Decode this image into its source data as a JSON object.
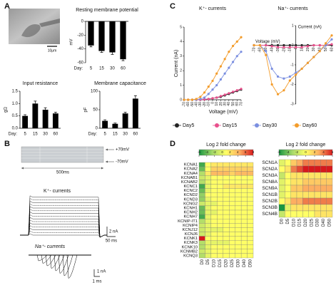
{
  "figure": {
    "panel_labels": [
      "A",
      "B",
      "C",
      "D"
    ],
    "scale_bar": "10μm",
    "protocol": {
      "high": "+70mV",
      "low": "-70mV",
      "duration": "500ms"
    },
    "traces": {
      "k_label": "K⁺- currents",
      "na_label": "Na⁺- currents",
      "k_scale_y": "2 nA",
      "k_scale_x": "50 ms",
      "na_scale_y": "1 nA",
      "na_scale_x": "1 ms"
    }
  },
  "chart_data": [
    {
      "type": "bar",
      "title": "Resting membrane potential",
      "ylabel": "mV",
      "xlabel": "Day:",
      "categories": [
        "5",
        "15",
        "30",
        "60"
      ],
      "values": [
        -35,
        -43,
        -45,
        -55
      ],
      "errors": [
        2,
        2,
        3,
        2
      ],
      "color": "#000000",
      "ylim": [
        -60,
        0
      ],
      "yticks": [
        -60,
        -40,
        -20,
        0
      ]
    },
    {
      "type": "bar",
      "title": "Input resistance",
      "ylabel": "gΩ",
      "xlabel": "Day:",
      "categories": [
        "5",
        "15",
        "30",
        "60"
      ],
      "values": [
        0.5,
        1.0,
        0.75,
        0.6
      ],
      "errors": [
        0.05,
        0.1,
        0.08,
        0.05
      ],
      "color": "#000000",
      "ylim": [
        0,
        1.5
      ],
      "yticks": [
        {
          "value": 0,
          "label": "0.0"
        },
        0.5,
        {
          "value": 1,
          "label": "1.0"
        },
        1.5
      ]
    },
    {
      "type": "bar",
      "title": "Membrane capacitance",
      "ylabel": "pF",
      "xlabel": "Day:",
      "categories": [
        "5",
        "15",
        "30",
        "60"
      ],
      "values": [
        20,
        12,
        40,
        80
      ],
      "errors": [
        3,
        2,
        3,
        8
      ],
      "color": "#000000",
      "ylim": [
        0,
        100
      ],
      "yticks": [
        0,
        50,
        100
      ]
    },
    {
      "type": "line",
      "title": "K⁺- currents",
      "xlabel": "Voltage (mV)",
      "ylabel": "Current (nA)",
      "legend": true,
      "x": [
        -70,
        -60,
        -50,
        -40,
        -30,
        -20,
        -10,
        0,
        10,
        20,
        30,
        40,
        50,
        60,
        70
      ],
      "xlim": [
        -70,
        70
      ],
      "xticks": [
        -70,
        -60,
        -50,
        -40,
        -30,
        -20,
        -10,
        0,
        10,
        20,
        30,
        40,
        50,
        60,
        70
      ],
      "ylim": [
        0,
        5
      ],
      "yticks": [
        0,
        1,
        2,
        3,
        4,
        5
      ],
      "series": [
        {
          "name": "Day5",
          "color": "#222222",
          "values": [
            0,
            0,
            0,
            0,
            0,
            0.02,
            0.05,
            0.1,
            0.15,
            0.2,
            0.3,
            0.4,
            0.5,
            0.6,
            0.7
          ]
        },
        {
          "name": "Day15",
          "color": "#e8508c",
          "values": [
            0,
            0,
            0,
            0,
            0,
            0.02,
            0.05,
            0.1,
            0.15,
            0.25,
            0.35,
            0.45,
            0.55,
            0.65,
            0.75
          ]
        },
        {
          "name": "Day30",
          "color": "#7b8fe0",
          "values": [
            0,
            0,
            0,
            0,
            0.05,
            0.15,
            0.4,
            0.7,
            1.0,
            1.4,
            1.8,
            2.2,
            2.6,
            3.0,
            3.3
          ]
        },
        {
          "name": "Day60",
          "color": "#f39c2b",
          "values": [
            0,
            0,
            0,
            0.05,
            0.2,
            0.5,
            0.9,
            1.3,
            1.8,
            2.3,
            2.8,
            3.3,
            3.7,
            4.0,
            4.3
          ]
        }
      ]
    },
    {
      "type": "line",
      "title": "Na⁺- currents",
      "xlabel": "Voltage (mV)",
      "ylabel": "Current (nA)",
      "axes_cross_at_zero": true,
      "x": [
        -70,
        -60,
        -50,
        -40,
        -30,
        -20,
        -10,
        0,
        10,
        20,
        30,
        40,
        50,
        60
      ],
      "xlim": [
        -70,
        60
      ],
      "xticks": [
        -70,
        -60,
        -50,
        -40,
        -30,
        -20,
        -10,
        0,
        10,
        20,
        30,
        40,
        50,
        60
      ],
      "ylim": [
        -3,
        1
      ],
      "yticks": [
        -3,
        -2,
        -1,
        0,
        1
      ],
      "series": [
        {
          "color": "#222222",
          "values": [
            0,
            0,
            0,
            0,
            0,
            0,
            0,
            0,
            0,
            0,
            0,
            0,
            0,
            0
          ]
        },
        {
          "color": "#e8508c",
          "values": [
            0,
            0,
            0,
            -0.05,
            -0.1,
            -0.1,
            -0.1,
            -0.1,
            -0.1,
            -0.05,
            0,
            0,
            0,
            0.05
          ]
        },
        {
          "color": "#7b8fe0",
          "values": [
            0,
            0,
            -0.3,
            -1.2,
            -1.6,
            -1.7,
            -1.6,
            -1.4,
            -1.2,
            -0.9,
            -0.6,
            -0.3,
            0,
            0.3
          ]
        },
        {
          "color": "#f39c2b",
          "values": [
            0,
            0,
            -0.5,
            -2.0,
            -2.5,
            -2.3,
            -1.8,
            -1.5,
            -1.2,
            -0.9,
            -0.6,
            -0.3,
            0.1,
            0.5
          ]
        }
      ]
    },
    {
      "type": "heatmap",
      "title": "Log 2 fold change",
      "colormap": [
        "#1a9641",
        "#a6d96a",
        "#ffff66",
        "#fdae61",
        "#d7191c"
      ],
      "zlim": [
        -6,
        8
      ],
      "zticks": [
        -6,
        -4,
        -2,
        0,
        2,
        4,
        6,
        8
      ],
      "columns": [
        "D0",
        "D5",
        "D10",
        "D15",
        "D20",
        "D25",
        "D30",
        "D40",
        "D50"
      ],
      "rows": [
        "KCNA1",
        "KCNA2",
        "KCNA4",
        "KCNAB1",
        "KCNAB2",
        "KCNC1",
        "KCNC2",
        "KCND2",
        "KCND3",
        "KCNG2",
        "KCNH1",
        "KCNH2",
        "KCNH7",
        "KCNIP-IT1",
        "KCNIP4",
        "KCNJ12",
        "KCNJ6",
        "KCNK1",
        "KCNK3",
        "KCNK10",
        "KCNMB2",
        "KCNQ3"
      ],
      "values": [
        [
          -5,
          1,
          2,
          2,
          2,
          2,
          2,
          2,
          2
        ],
        [
          -4,
          1,
          3,
          3,
          3,
          3,
          3,
          3,
          3
        ],
        [
          -2,
          2,
          4,
          4,
          4,
          3,
          4,
          4,
          4
        ],
        [
          -1,
          0,
          1,
          1,
          1,
          1,
          1,
          1,
          1
        ],
        [
          -2,
          0,
          1,
          1,
          1,
          1,
          1,
          1,
          1
        ],
        [
          -5,
          0,
          1,
          1,
          2,
          2,
          2,
          2,
          2
        ],
        [
          -4,
          0,
          1,
          1,
          1,
          1,
          1,
          1,
          1
        ],
        [
          -3,
          1,
          1,
          1,
          1,
          1,
          1,
          1,
          1
        ],
        [
          -3,
          0,
          1,
          1,
          1,
          1,
          1,
          1,
          1
        ],
        [
          -1,
          0,
          0,
          1,
          1,
          1,
          1,
          1,
          1
        ],
        [
          -4,
          0,
          1,
          1,
          1,
          1,
          1,
          1,
          1
        ],
        [
          -4,
          0,
          0,
          1,
          1,
          1,
          1,
          1,
          1
        ],
        [
          -5,
          0,
          1,
          1,
          1,
          1,
          1,
          1,
          1
        ],
        [
          -2,
          0,
          1,
          1,
          1,
          1,
          1,
          1,
          1
        ],
        [
          -1,
          0,
          1,
          1,
          1,
          1,
          1,
          1,
          1
        ],
        [
          -1,
          0,
          0,
          0,
          1,
          1,
          1,
          1,
          1
        ],
        [
          -1,
          0,
          1,
          1,
          1,
          1,
          1,
          1,
          1
        ],
        [
          8,
          1,
          1,
          1,
          1,
          1,
          1,
          1,
          1
        ],
        [
          -2,
          0,
          0,
          0,
          0,
          1,
          1,
          1,
          1
        ],
        [
          -2,
          0,
          1,
          1,
          1,
          1,
          1,
          1,
          1
        ],
        [
          -1,
          0,
          1,
          1,
          1,
          1,
          1,
          1,
          1
        ],
        [
          -2,
          0,
          1,
          1,
          1,
          1,
          1,
          1,
          1
        ]
      ]
    },
    {
      "type": "heatmap",
      "title": "Log 2 fold change",
      "colormap": [
        "#1a9641",
        "#a6d96a",
        "#ffff66",
        "#fdae61",
        "#d7191c"
      ],
      "zlim": [
        -6,
        6
      ],
      "zticks": [
        -6,
        -4,
        -2,
        0,
        2,
        4,
        6
      ],
      "columns": [
        "D0",
        "D5",
        "D10",
        "D15",
        "D20",
        "D25",
        "D30",
        "D40",
        "D50"
      ],
      "rows": [
        "SCN1A",
        "SCN2A",
        "SCN3A",
        "SCN8A",
        "SCN9A",
        "SCN1B",
        "SCN2B",
        "SCN3B",
        "SCN4B"
      ],
      "values": [
        [
          -1,
          0,
          2,
          3,
          4,
          4,
          4,
          4,
          4
        ],
        [
          0,
          1,
          4,
          5,
          6,
          6,
          6,
          6,
          6
        ],
        [
          -2,
          0,
          1,
          1,
          1,
          1,
          1,
          1,
          1
        ],
        [
          -1,
          0,
          1,
          1,
          2,
          2,
          2,
          2,
          2
        ],
        [
          -1,
          0,
          2,
          2,
          3,
          3,
          3,
          3,
          3
        ],
        [
          -1,
          0,
          1,
          1,
          1,
          1,
          1,
          1,
          1
        ],
        [
          0,
          1,
          3,
          3,
          4,
          4,
          4,
          4,
          4
        ],
        [
          -6,
          -1,
          1,
          1,
          1,
          1,
          1,
          1,
          1
        ],
        [
          -2,
          0,
          0,
          0,
          0,
          0,
          1,
          1,
          1
        ]
      ]
    }
  ]
}
